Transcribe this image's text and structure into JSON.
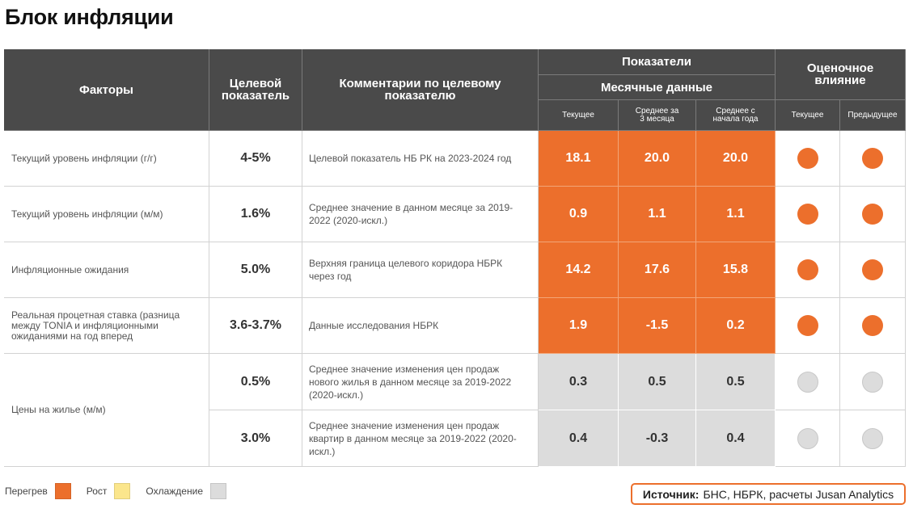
{
  "title": "Блок инфляции",
  "headers": {
    "factors": "Факторы",
    "target": "Целевой показатель",
    "comments": "Комментарии по целевому показателю",
    "indicators": "Показатели",
    "monthly": "Месячные данные",
    "current": "Текущее",
    "avg3": "Среднее за 3 месяца",
    "ytd": "Среднее с начала года",
    "impact": "Оценочное влияние",
    "impact_current": "Текущее",
    "impact_previous": "Предыдущее"
  },
  "rows": [
    {
      "factor": "Текущий уровень инфляции (г/г)",
      "target": "4-5%",
      "comment": "Целевой показатель НБ РК на 2023-2024 год",
      "current": "18.1",
      "avg3": "20.0",
      "ytd": "20.0",
      "status": "Перегрев",
      "impact_current": "Перегрев",
      "impact_previous": "Перегрев"
    },
    {
      "factor": "Текущий уровень инфляции (м/м)",
      "target": "1.6%",
      "comment": "Среднее значение в данном месяце за 2019-2022 (2020-искл.)",
      "current": "0.9",
      "avg3": "1.1",
      "ytd": "1.1",
      "status": "Перегрев",
      "impact_current": "Перегрев",
      "impact_previous": "Перегрев"
    },
    {
      "factor": "Инфляционные ожидания",
      "target": "5.0%",
      "comment": "Верхняя граница целевого коридора НБРК через год",
      "current": "14.2",
      "avg3": "17.6",
      "ytd": "15.8",
      "status": "Перегрев",
      "impact_current": "Перегрев",
      "impact_previous": "Перегрев"
    },
    {
      "factor": "Реальная процетная ставка (разница между TONIA и инфляционными ожиданиями на год вперед",
      "target": "3.6-3.7%",
      "comment": "Данные исследования НБРК",
      "current": "1.9",
      "avg3": "-1.5",
      "ytd": "0.2",
      "status": "Перегрев",
      "impact_current": "Перегрев",
      "impact_previous": "Перегрев"
    },
    {
      "factor": "Цены на жилье (м/м)",
      "target": "0.5%",
      "comment": "Среднее значение изменения цен продаж нового жилья в данном месяце за 2019-2022 (2020-искл.)",
      "current": "0.3",
      "avg3": "0.5",
      "ytd": "0.5",
      "status": "Охлаждение",
      "impact_current": "Охлаждение",
      "impact_previous": "Охлаждение"
    },
    {
      "factor": "",
      "target": "3.0%",
      "comment": "Среднее значение изменения цен продаж квартир в данном месяце за 2019-2022 (2020-искл.)",
      "current": "0.4",
      "avg3": "-0.3",
      "ytd": "0.4",
      "status": "Охлаждение",
      "impact_current": "Охлаждение",
      "impact_previous": "Охлаждение"
    }
  ],
  "legend": [
    {
      "label": "Перегрев",
      "color": "#ec6f2c"
    },
    {
      "label": "Рост",
      "color": "#fbe68c"
    },
    {
      "label": "Охлаждение",
      "color": "#dcdcdc"
    }
  ],
  "source": {
    "label": "Источник:",
    "text": "БНС, НБРК, расчеты Jusan Analytics"
  },
  "colors": {
    "hot": "#ec6f2c",
    "growth": "#fbe68c",
    "cool": "#dcdcdc",
    "header": "#4a4a4a"
  }
}
